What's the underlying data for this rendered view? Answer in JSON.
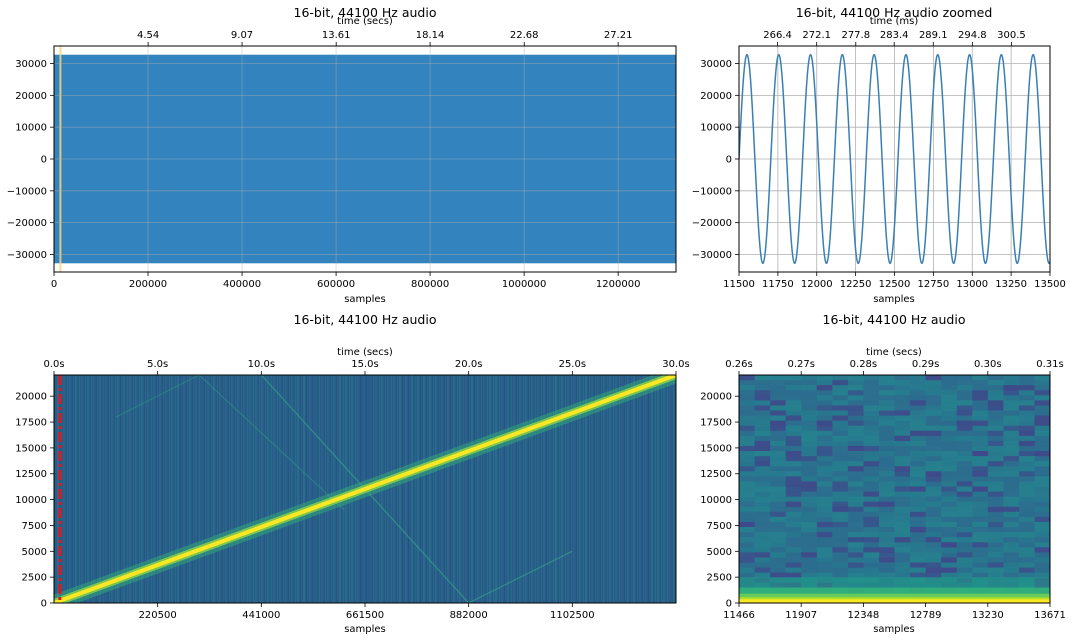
{
  "chart_data": [
    {
      "type": "area",
      "title": "16-bit, 44100 Hz audio",
      "xlabel": "samples",
      "top_xlabel": "time (secs)",
      "x_ticks": [
        "0",
        "200000",
        "400000",
        "600000",
        "800000",
        "1000000",
        "1200000"
      ],
      "top_ticks": [
        "4.54",
        "9.07",
        "13.61",
        "18.14",
        "22.68",
        "27.21"
      ],
      "y_ticks": [
        "30000",
        "20000",
        "10000",
        "0",
        "−10000",
        "−20000",
        "−30000"
      ],
      "xlim": [
        0,
        1323000
      ],
      "ylim": [
        -35500,
        35500
      ],
      "waveform_amplitude": 32767,
      "highlight_x_range": [
        11500,
        13500
      ],
      "colors": {
        "fill": "#3383be",
        "highlight": "#ffd27a"
      },
      "grid": true
    },
    {
      "type": "line",
      "title": "16-bit, 44100 Hz audio zoomed",
      "xlabel": "samples",
      "top_xlabel": "time (ms)",
      "x_ticks": [
        "11500",
        "11750",
        "12000",
        "12250",
        "12500",
        "12750",
        "13000",
        "13250",
        "13500"
      ],
      "top_ticks": [
        "266.4",
        "272.1",
        "277.8",
        "283.4",
        "289.1",
        "294.8",
        "300.5"
      ],
      "y_ticks": [
        "30000",
        "20000",
        "10000",
        "0",
        "−10000",
        "−20000",
        "−30000"
      ],
      "xlim": [
        11500,
        13500
      ],
      "ylim": [
        -35500,
        35500
      ],
      "series": [
        {
          "amplitude": 32767,
          "start_phase_samples": 11500,
          "period_samples": 204.5
        }
      ],
      "colors": {
        "line": "#3a7fb4"
      },
      "grid": true
    },
    {
      "type": "heatmap",
      "title": "16-bit, 44100 Hz audio",
      "xlabel": "samples",
      "top_xlabel": "time (secs)",
      "x_ticks": [
        "220500",
        "441000",
        "661500",
        "882000",
        "1102500"
      ],
      "top_ticks": [
        "0.0s",
        "5.0s",
        "10.0s",
        "15.0s",
        "20.0s",
        "25.0s",
        "30.0s"
      ],
      "y_ticks": [
        "20000",
        "17500",
        "15000",
        "12500",
        "10000",
        "7500",
        "5000",
        "2500",
        "0"
      ],
      "xlim": [
        0,
        1323000
      ],
      "ylim": [
        0,
        22050
      ],
      "sweep": {
        "start_hz": 0,
        "end_hz": 22050,
        "start_s": 0,
        "end_s": 30
      },
      "marker_x": 12500,
      "colors": {
        "low": "#2a5a8a",
        "mid": "#27828e",
        "high": "#fde725",
        "marker": "#e01818"
      }
    },
    {
      "type": "heatmap",
      "title": "16-bit, 44100 Hz audio",
      "xlabel": "samples",
      "top_xlabel": "time (secs)",
      "x_ticks": [
        "11466",
        "11907",
        "12348",
        "12789",
        "13230",
        "13671"
      ],
      "top_ticks": [
        "0.26s",
        "0.27s",
        "0.28s",
        "0.29s",
        "0.30s",
        "0.31s"
      ],
      "y_ticks": [
        "20000",
        "17500",
        "15000",
        "12500",
        "10000",
        "7500",
        "5000",
        "2500",
        "0"
      ],
      "xlim": [
        11466,
        13671
      ],
      "ylim": [
        0,
        22050
      ],
      "colors": {
        "low": "#2a5a8a",
        "mid": "#27828e",
        "high": "#fde725"
      }
    }
  ]
}
